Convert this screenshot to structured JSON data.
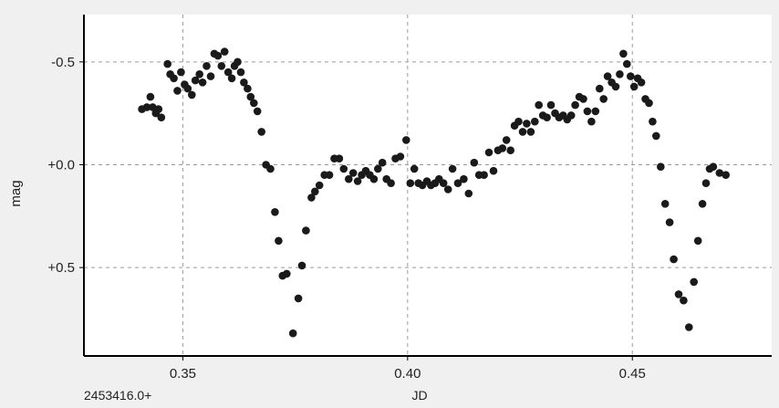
{
  "chart_data": {
    "type": "scatter",
    "title": "",
    "xlabel": "JD",
    "ylabel": "mag",
    "x_offset_label": "2453416.0+",
    "xlim": [
      0.328,
      0.481
    ],
    "ylim": [
      0.93,
      -0.73
    ],
    "y_inverted": true,
    "grid": true,
    "grid_style": "dashed",
    "x_ticks": [
      0.35,
      0.4,
      0.45
    ],
    "x_tick_labels": [
      "0.35",
      "0.40",
      "0.45"
    ],
    "y_ticks": [
      -0.5,
      0.0,
      0.5
    ],
    "y_tick_labels": [
      "-0.5",
      "+0.0",
      "+0.5"
    ],
    "marker_color": "#1a1a1a",
    "series": [
      {
        "name": "",
        "points": [
          [
            0.3409,
            -0.27
          ],
          [
            0.342,
            -0.28
          ],
          [
            0.3428,
            -0.33
          ],
          [
            0.3433,
            -0.28
          ],
          [
            0.344,
            -0.25
          ],
          [
            0.3446,
            -0.27
          ],
          [
            0.3452,
            -0.23
          ],
          [
            0.3466,
            -0.49
          ],
          [
            0.3472,
            -0.44
          ],
          [
            0.348,
            -0.42
          ],
          [
            0.3488,
            -0.36
          ],
          [
            0.3496,
            -0.45
          ],
          [
            0.3504,
            -0.39
          ],
          [
            0.3511,
            -0.37
          ],
          [
            0.352,
            -0.34
          ],
          [
            0.3528,
            -0.41
          ],
          [
            0.3537,
            -0.44
          ],
          [
            0.3544,
            -0.4
          ],
          [
            0.3553,
            -0.48
          ],
          [
            0.3562,
            -0.43
          ],
          [
            0.357,
            -0.54
          ],
          [
            0.3578,
            -0.53
          ],
          [
            0.3586,
            -0.48
          ],
          [
            0.3593,
            -0.55
          ],
          [
            0.3601,
            -0.45
          ],
          [
            0.3609,
            -0.42
          ],
          [
            0.3615,
            -0.48
          ],
          [
            0.3622,
            -0.5
          ],
          [
            0.3629,
            -0.45
          ],
          [
            0.3636,
            -0.4
          ],
          [
            0.3644,
            -0.37
          ],
          [
            0.3651,
            -0.33
          ],
          [
            0.3658,
            -0.3
          ],
          [
            0.3666,
            -0.26
          ],
          [
            0.3675,
            -0.16
          ],
          [
            0.3685,
            0.0
          ],
          [
            0.3695,
            0.02
          ],
          [
            0.3705,
            0.23
          ],
          [
            0.3713,
            0.37
          ],
          [
            0.3722,
            0.54
          ],
          [
            0.3731,
            0.53
          ],
          [
            0.3745,
            0.82
          ],
          [
            0.3757,
            0.65
          ],
          [
            0.3765,
            0.49
          ],
          [
            0.3774,
            0.32
          ],
          [
            0.3786,
            0.16
          ],
          [
            0.3794,
            0.13
          ],
          [
            0.3804,
            0.1
          ],
          [
            0.3815,
            0.05
          ],
          [
            0.3826,
            0.05
          ],
          [
            0.3837,
            -0.03
          ],
          [
            0.3848,
            -0.03
          ],
          [
            0.3858,
            0.02
          ],
          [
            0.3869,
            0.07
          ],
          [
            0.3879,
            0.04
          ],
          [
            0.3889,
            0.08
          ],
          [
            0.3898,
            0.05
          ],
          [
            0.3907,
            0.03
          ],
          [
            0.3916,
            0.05
          ],
          [
            0.3925,
            0.07
          ],
          [
            0.3934,
            0.02
          ],
          [
            0.3944,
            -0.01
          ],
          [
            0.3953,
            0.07
          ],
          [
            0.3963,
            0.09
          ],
          [
            0.3973,
            -0.03
          ],
          [
            0.3984,
            -0.04
          ],
          [
            0.3997,
            -0.12
          ],
          [
            0.4006,
            0.09
          ],
          [
            0.4015,
            0.02
          ],
          [
            0.4024,
            0.09
          ],
          [
            0.4033,
            0.1
          ],
          [
            0.4043,
            0.08
          ],
          [
            0.4052,
            0.1
          ],
          [
            0.4061,
            0.09
          ],
          [
            0.407,
            0.07
          ],
          [
            0.408,
            0.09
          ],
          [
            0.409,
            0.12
          ],
          [
            0.41,
            0.02
          ],
          [
            0.4112,
            0.09
          ],
          [
            0.4125,
            0.07
          ],
          [
            0.4136,
            0.14
          ],
          [
            0.4148,
            -0.01
          ],
          [
            0.4159,
            0.05
          ],
          [
            0.417,
            0.05
          ],
          [
            0.4181,
            -0.06
          ],
          [
            0.4191,
            0.03
          ],
          [
            0.4201,
            -0.07
          ],
          [
            0.4211,
            -0.08
          ],
          [
            0.422,
            -0.12
          ],
          [
            0.4229,
            -0.07
          ],
          [
            0.4238,
            -0.19
          ],
          [
            0.4247,
            -0.21
          ],
          [
            0.4256,
            -0.16
          ],
          [
            0.4265,
            -0.2
          ],
          [
            0.4274,
            -0.16
          ],
          [
            0.4283,
            -0.21
          ],
          [
            0.4292,
            -0.29
          ],
          [
            0.4301,
            -0.24
          ],
          [
            0.431,
            -0.23
          ],
          [
            0.4319,
            -0.29
          ],
          [
            0.4328,
            -0.25
          ],
          [
            0.4337,
            -0.23
          ],
          [
            0.4346,
            -0.24
          ],
          [
            0.4355,
            -0.22
          ],
          [
            0.4364,
            -0.24
          ],
          [
            0.4373,
            -0.29
          ],
          [
            0.4382,
            -0.33
          ],
          [
            0.4391,
            -0.32
          ],
          [
            0.44,
            -0.26
          ],
          [
            0.4409,
            -0.21
          ],
          [
            0.4418,
            -0.26
          ],
          [
            0.4427,
            -0.37
          ],
          [
            0.4436,
            -0.32
          ],
          [
            0.4445,
            -0.43
          ],
          [
            0.4454,
            -0.4
          ],
          [
            0.4463,
            -0.38
          ],
          [
            0.4472,
            -0.44
          ],
          [
            0.448,
            -0.54
          ],
          [
            0.4488,
            -0.49
          ],
          [
            0.4496,
            -0.43
          ],
          [
            0.4504,
            -0.38
          ],
          [
            0.4512,
            -0.42
          ],
          [
            0.452,
            -0.4
          ],
          [
            0.4529,
            -0.32
          ],
          [
            0.4537,
            -0.3
          ],
          [
            0.4545,
            -0.21
          ],
          [
            0.4553,
            -0.14
          ],
          [
            0.4563,
            0.01
          ],
          [
            0.4573,
            0.19
          ],
          [
            0.4583,
            0.28
          ],
          [
            0.4592,
            0.46
          ],
          [
            0.4603,
            0.63
          ],
          [
            0.4614,
            0.66
          ],
          [
            0.4626,
            0.79
          ],
          [
            0.4637,
            0.57
          ],
          [
            0.4646,
            0.37
          ],
          [
            0.4656,
            0.19
          ],
          [
            0.4664,
            0.09
          ],
          [
            0.4672,
            0.02
          ],
          [
            0.468,
            0.01
          ],
          [
            0.4694,
            0.04
          ],
          [
            0.4708,
            0.05
          ]
        ]
      }
    ]
  }
}
